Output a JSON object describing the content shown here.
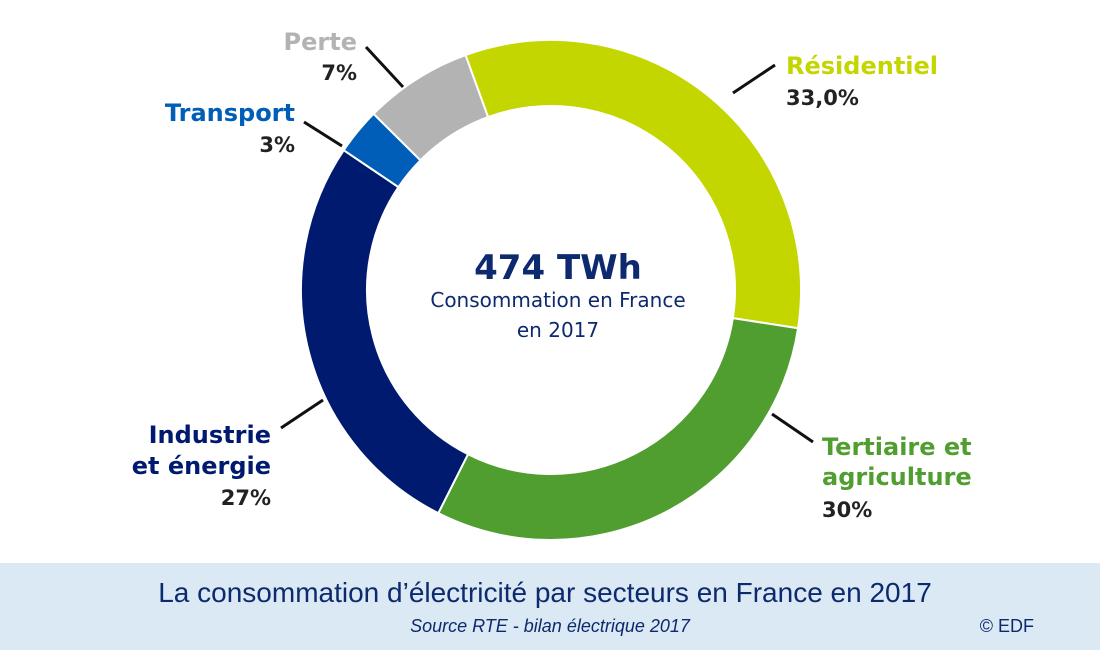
{
  "chart_data": {
    "type": "pie",
    "style": "donut",
    "center_value": "474 TWh",
    "center_caption_line1": "Consommation en France",
    "center_caption_line2": "en 2017",
    "slices": [
      {
        "key": "residentiel",
        "name_lines": [
          "Résidentiel"
        ],
        "value_label": "33,0%",
        "value": 33.0,
        "color": "#c4d600"
      },
      {
        "key": "tertiaire",
        "name_lines": [
          "Tertiaire et",
          "agriculture"
        ],
        "value_label": "30%",
        "value": 30,
        "color": "#509e2f"
      },
      {
        "key": "industrie",
        "name_lines": [
          "Industrie",
          "et énergie"
        ],
        "value_label": "27%",
        "value": 27,
        "color": "#001a70"
      },
      {
        "key": "transport",
        "name_lines": [
          "Transport"
        ],
        "value_label": "3%",
        "value": 3,
        "color": "#005eb8"
      },
      {
        "key": "perte",
        "name_lines": [
          "Perte"
        ],
        "value_label": "7%",
        "value": 7,
        "color": "#b3b3b3"
      }
    ]
  },
  "footer": {
    "title": "La consommation d’électricité par secteurs en France en 2017",
    "source": "Source RTE - bilan électrique 2017",
    "credit": "© EDF"
  }
}
